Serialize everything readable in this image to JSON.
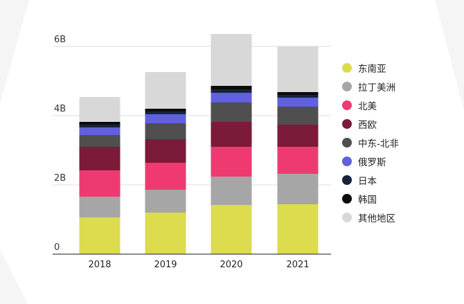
{
  "chart_data": {
    "type": "bar",
    "stacked": true,
    "categories": [
      "2018",
      "2019",
      "2020",
      "2021"
    ],
    "y_ticks": [
      "0",
      "2B",
      "4B",
      "6B"
    ],
    "ylim": [
      0,
      6.6
    ],
    "grid": true,
    "legend_position": "right",
    "series": [
      {
        "name": "东南亚",
        "color": "#dcdc4e",
        "values": [
          1.06,
          1.2,
          1.42,
          1.44
        ]
      },
      {
        "name": "拉丁美洲",
        "color": "#a6a6a6",
        "values": [
          0.6,
          0.66,
          0.82,
          0.88
        ]
      },
      {
        "name": "北美",
        "color": "#ee3a71",
        "values": [
          0.76,
          0.78,
          0.86,
          0.78
        ]
      },
      {
        "name": "西欧",
        "color": "#7c1a3a",
        "values": [
          0.68,
          0.68,
          0.72,
          0.64
        ]
      },
      {
        "name": "中东-北非",
        "color": "#4f4f4f",
        "values": [
          0.34,
          0.46,
          0.56,
          0.52
        ]
      },
      {
        "name": "俄罗斯",
        "color": "#6060e0",
        "values": [
          0.22,
          0.26,
          0.28,
          0.26
        ]
      },
      {
        "name": "日本",
        "color": "#16243c",
        "values": [
          0.08,
          0.08,
          0.1,
          0.08
        ]
      },
      {
        "name": "韩国",
        "color": "#0b0b0b",
        "values": [
          0.08,
          0.08,
          0.1,
          0.08
        ]
      },
      {
        "name": "其他地区",
        "color": "#d8d8d8",
        "values": [
          0.72,
          1.06,
          1.5,
          1.32
        ]
      }
    ]
  }
}
